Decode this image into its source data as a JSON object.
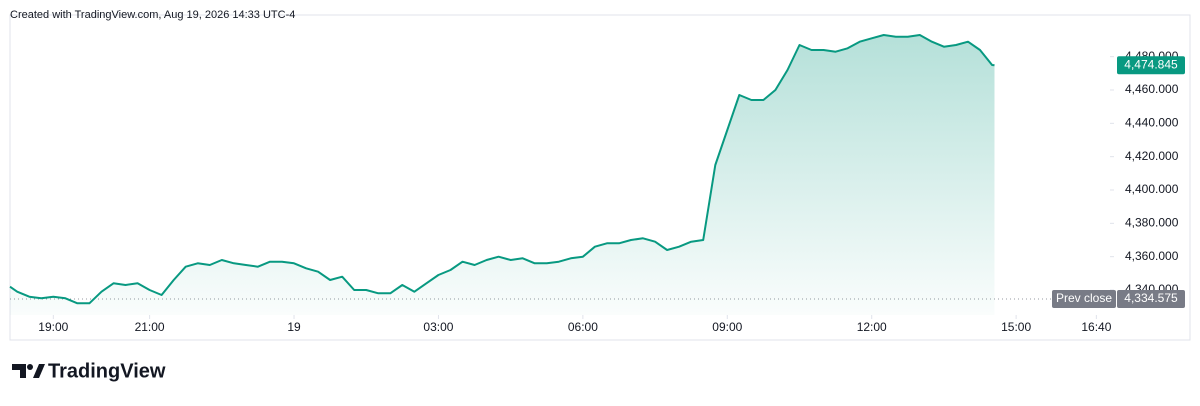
{
  "header": "Created with TradingView.com, Aug 19, 2026 14:33 UTC-4",
  "brand": "TradingView",
  "chart_data": {
    "type": "area",
    "x": [
      "18:06",
      "18:15",
      "18:30",
      "18:45",
      "19:00",
      "19:15",
      "19:30",
      "19:45",
      "20:00",
      "20:15",
      "20:30",
      "20:45",
      "21:00",
      "21:15",
      "21:30",
      "21:45",
      "22:00",
      "22:15",
      "22:30",
      "22:45",
      "23:00",
      "23:15",
      "23:30",
      "23:45",
      "00:00",
      "00:15",
      "00:30",
      "00:45",
      "01:00",
      "01:15",
      "01:30",
      "01:45",
      "02:00",
      "02:15",
      "02:30",
      "02:45",
      "03:00",
      "03:15",
      "03:30",
      "03:45",
      "04:00",
      "04:15",
      "04:30",
      "04:45",
      "05:00",
      "05:15",
      "05:30",
      "05:45",
      "06:00",
      "06:15",
      "06:30",
      "06:45",
      "07:00",
      "07:15",
      "07:30",
      "07:45",
      "08:00",
      "08:15",
      "08:30",
      "08:45",
      "09:00",
      "09:15",
      "09:30",
      "09:45",
      "10:00",
      "10:15",
      "10:30",
      "10:45",
      "11:00",
      "11:15",
      "11:30",
      "11:45",
      "12:00",
      "12:15",
      "12:30",
      "12:45",
      "13:00",
      "13:15",
      "13:30",
      "13:45",
      "14:00",
      "14:15",
      "14:30",
      "14:33"
    ],
    "values": [
      4342,
      4339,
      4336,
      4335,
      4336,
      4335,
      4332,
      4332,
      4339,
      4344,
      4343,
      4344,
      4340,
      4337,
      4346,
      4354,
      4356,
      4355,
      4358,
      4356,
      4355,
      4354,
      4357,
      4357,
      4356,
      4353,
      4351,
      4346,
      4348,
      4340,
      4340,
      4338,
      4338,
      4343,
      4339,
      4344,
      4349,
      4352,
      4357,
      4355,
      4358,
      4360,
      4358,
      4359,
      4356,
      4356,
      4357,
      4359,
      4360,
      4366,
      4368,
      4368,
      4370,
      4371,
      4369,
      4364,
      4366,
      4369,
      4370,
      4415,
      4436,
      4457,
      4454,
      4454,
      4460,
      4472,
      4487,
      4484,
      4484,
      4483,
      4485,
      4489,
      4491,
      4493,
      4492,
      4492,
      4493,
      4489,
      4486,
      4487,
      4489,
      4484,
      4475,
      4474.845
    ],
    "color": "#089981",
    "xlim": [
      "18:06",
      "16:57"
    ],
    "xticks": [
      "19:00",
      "21:00",
      {
        "value": "00:00",
        "label": "19"
      },
      "03:00",
      "06:00",
      "09:00",
      "12:00",
      "15:00",
      "16:40"
    ],
    "ylim": [
      4325,
      4505
    ],
    "yticks": [
      {
        "value": 4340,
        "label": "4,340.000"
      },
      {
        "value": 4360,
        "label": "4,360.000"
      },
      {
        "value": 4380,
        "label": "4,380.000"
      },
      {
        "value": 4400,
        "label": "4,400.000"
      },
      {
        "value": 4420,
        "label": "4,420.000"
      },
      {
        "value": 4440,
        "label": "4,440.000"
      },
      {
        "value": 4460,
        "label": "4,460.000"
      },
      {
        "value": 4480,
        "label": "4,480.000"
      }
    ],
    "last_price": {
      "value": 4474.845,
      "label": "4,474.845"
    },
    "prev_close": {
      "name": "Prev close",
      "value": 4334.575,
      "label": "4,334.575"
    }
  }
}
